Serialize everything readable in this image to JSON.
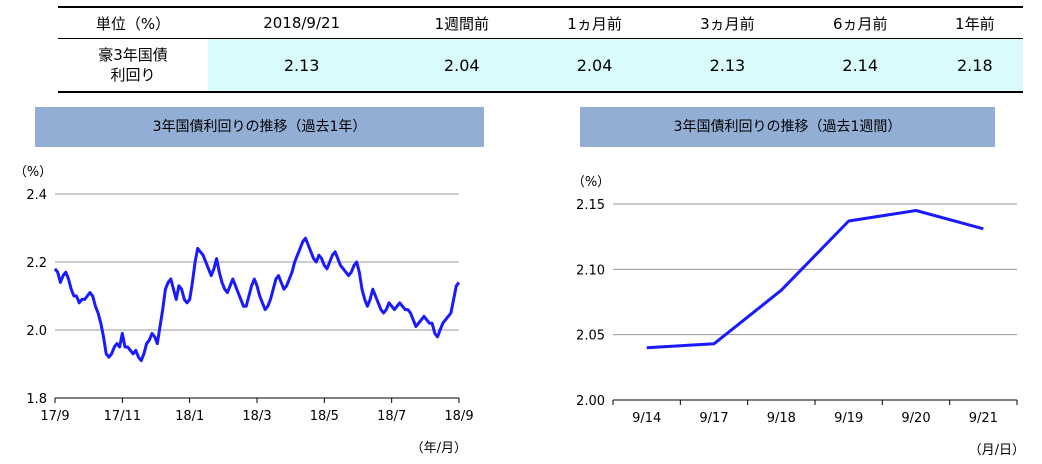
{
  "table": {
    "header": [
      "単位（%）",
      "2018/9/21",
      "1週間前",
      "1ヵ月前",
      "3ヵ月前",
      "6ヵ月前",
      "1年前"
    ],
    "row_label_1": "豪3年国債",
    "row_label_2": "利回り",
    "values": [
      "2.13",
      "2.04",
      "2.04",
      "2.13",
      "2.14",
      "2.18"
    ]
  },
  "chart_data": [
    {
      "type": "line",
      "title": "3年国債利回りの推移（過去1年）",
      "yunit": "（%）",
      "xunit": "（年/月）",
      "ylim": [
        1.8,
        2.4
      ],
      "yticks": [
        "2.4",
        "2.2",
        "2.0",
        "1.8"
      ],
      "yticks_values": [
        2.4,
        2.2,
        2.0,
        1.8
      ],
      "xticks": [
        "17/9",
        "17/11",
        "18/1",
        "18/3",
        "18/5",
        "18/7",
        "18/9"
      ],
      "grid": true,
      "color": "#1a1aff",
      "values": [
        2.18,
        2.17,
        2.14,
        2.16,
        2.17,
        2.15,
        2.12,
        2.1,
        2.1,
        2.08,
        2.09,
        2.09,
        2.1,
        2.11,
        2.1,
        2.07,
        2.05,
        2.02,
        1.98,
        1.93,
        1.92,
        1.93,
        1.95,
        1.96,
        1.95,
        1.99,
        1.95,
        1.95,
        1.94,
        1.93,
        1.94,
        1.92,
        1.91,
        1.93,
        1.96,
        1.97,
        1.99,
        1.98,
        1.96,
        2.01,
        2.06,
        2.12,
        2.14,
        2.15,
        2.12,
        2.09,
        2.13,
        2.12,
        2.09,
        2.08,
        2.09,
        2.14,
        2.2,
        2.24,
        2.23,
        2.22,
        2.2,
        2.18,
        2.16,
        2.18,
        2.21,
        2.17,
        2.14,
        2.12,
        2.11,
        2.13,
        2.15,
        2.13,
        2.11,
        2.09,
        2.07,
        2.07,
        2.1,
        2.13,
        2.15,
        2.13,
        2.1,
        2.08,
        2.06,
        2.07,
        2.09,
        2.12,
        2.15,
        2.16,
        2.14,
        2.12,
        2.13,
        2.15,
        2.17,
        2.2,
        2.22,
        2.24,
        2.26,
        2.27,
        2.25,
        2.23,
        2.21,
        2.2,
        2.22,
        2.21,
        2.19,
        2.18,
        2.2,
        2.22,
        2.23,
        2.21,
        2.19,
        2.18,
        2.17,
        2.16,
        2.17,
        2.19,
        2.2,
        2.17,
        2.12,
        2.09,
        2.07,
        2.09,
        2.12,
        2.1,
        2.08,
        2.06,
        2.05,
        2.06,
        2.08,
        2.07,
        2.06,
        2.07,
        2.08,
        2.07,
        2.06,
        2.06,
        2.05,
        2.03,
        2.01,
        2.02,
        2.03,
        2.04,
        2.03,
        2.02,
        2.02,
        1.99,
        1.98,
        2.0,
        2.02,
        2.03,
        2.04,
        2.05,
        2.09,
        2.13,
        2.14
      ]
    },
    {
      "type": "line",
      "title": "3年国債利回りの推移（過去1週間）",
      "yunit": "（%）",
      "xunit": "（月/日）",
      "ylim": [
        2.0,
        2.15
      ],
      "yticks": [
        "2.15",
        "2.10",
        "2.05",
        "2.00"
      ],
      "yticks_values": [
        2.15,
        2.1,
        2.05,
        2.0
      ],
      "categories": [
        "9/14",
        "9/17",
        "9/18",
        "9/19",
        "9/20",
        "9/21"
      ],
      "values": [
        2.04,
        2.043,
        2.084,
        2.137,
        2.145,
        2.131
      ],
      "grid": true,
      "color": "#1a1aff"
    }
  ]
}
